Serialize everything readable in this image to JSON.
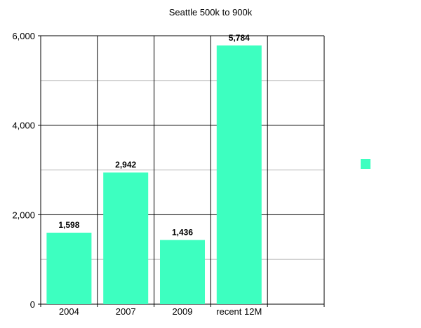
{
  "chart_data": {
    "type": "bar",
    "title": "Seattle 500k to 900k",
    "categories": [
      "2004",
      "2007",
      "2009",
      "recent 12M",
      ""
    ],
    "values": [
      1598,
      2942,
      1436,
      5784,
      null
    ],
    "data_labels": [
      "1,598",
      "2,942",
      "1,436",
      "5,784",
      ""
    ],
    "series": [
      {
        "name": "",
        "values": [
          1598,
          2942,
          1436,
          5784,
          null
        ]
      }
    ],
    "xlabel": "",
    "ylabel": "",
    "ylim": [
      0,
      6000
    ],
    "yticks": [
      0,
      2000,
      4000,
      6000
    ],
    "ytick_labels": [
      "0",
      "2,000",
      "4,000",
      "6,000"
    ],
    "minor_gridlines": [
      1000,
      3000,
      5000
    ],
    "grid": true,
    "legend": {
      "position": "right",
      "entries": [
        ""
      ]
    },
    "colors": {
      "bar": "#3dffc0",
      "grid_major": "#000000",
      "grid_minor": "#b0b0b0",
      "axis": "#000000"
    }
  }
}
